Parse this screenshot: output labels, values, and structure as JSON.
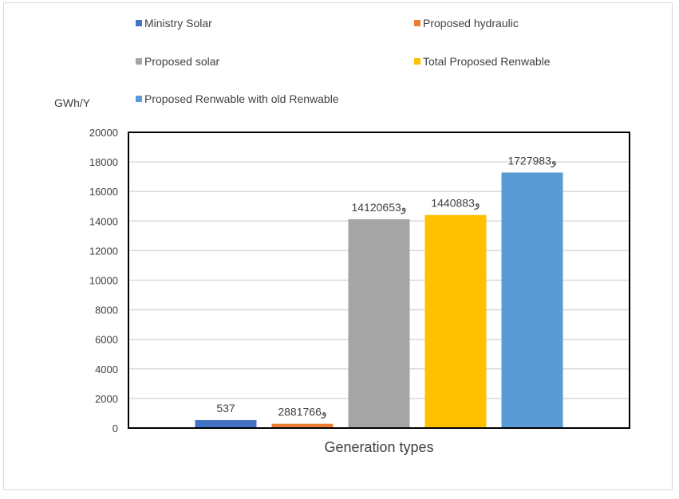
{
  "chart_data": {
    "type": "bar",
    "title": "",
    "xlabel": "Generation types",
    "ylabel": "GWh/Y",
    "ylim": [
      0,
      20000
    ],
    "yticks": [
      0,
      2000,
      4000,
      6000,
      8000,
      10000,
      12000,
      14000,
      16000,
      18000,
      20000
    ],
    "grid": true,
    "legend_position": "top",
    "series": [
      {
        "name": "Ministry Solar",
        "value": 537,
        "label": "537",
        "color": "#4472C4"
      },
      {
        "name": "Proposed hydraulic",
        "value": 288.1766,
        "label": "288و1766",
        "color": "#ED7D31"
      },
      {
        "name": "Proposed solar",
        "value": 14120.653,
        "label": "14120و653",
        "color": "#A5A5A5"
      },
      {
        "name": "Total Proposed Renwable",
        "value": 14408.83,
        "label": "14408و83",
        "color": "#FFC000"
      },
      {
        "name": "Proposed Renwable with old Renwable",
        "value": 17279.83,
        "label": "17279و83",
        "color": "#5B9BD5"
      }
    ]
  }
}
